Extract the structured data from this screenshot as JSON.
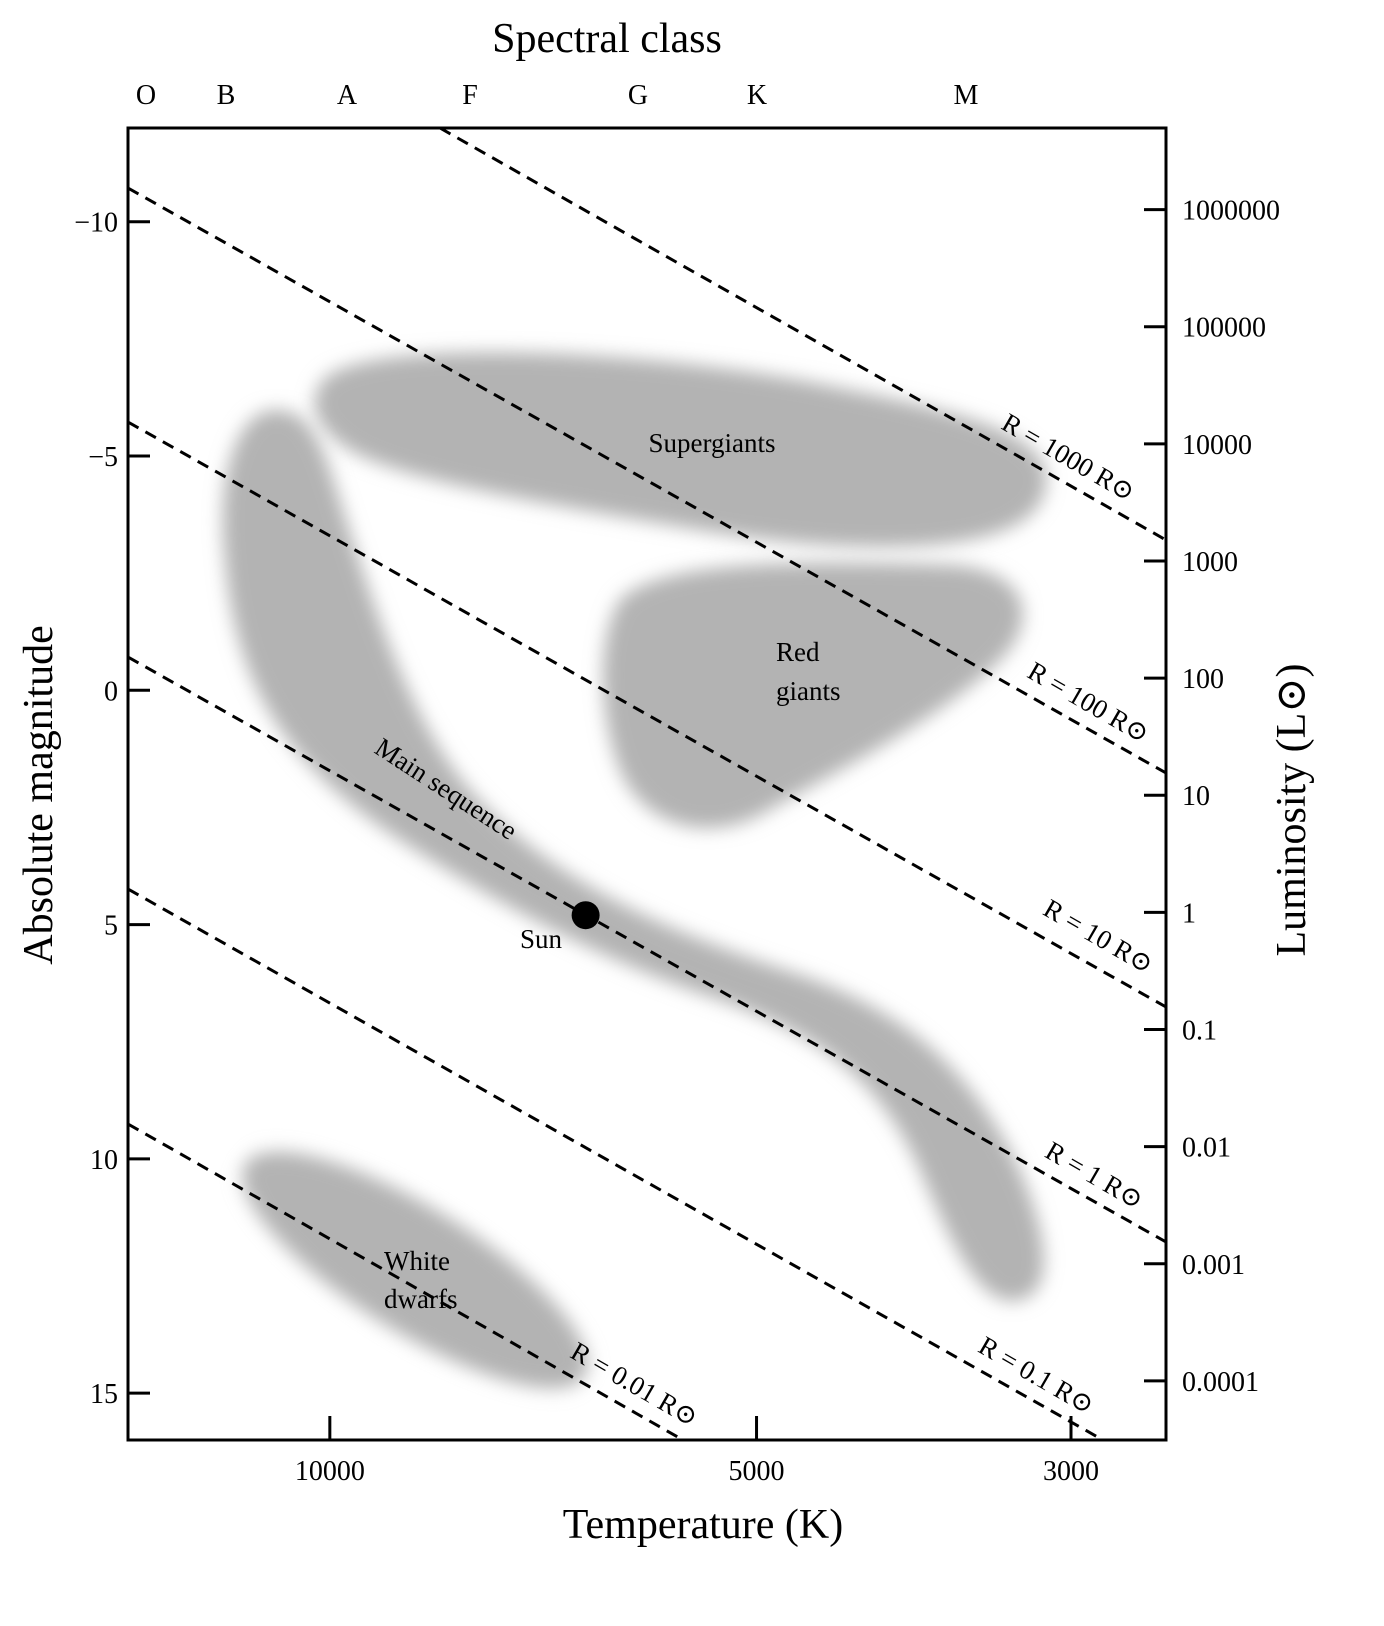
{
  "chart_data": {
    "type": "scatter",
    "title": "Spectral class",
    "spectral_classes": [
      "O",
      "B",
      "A",
      "F",
      "G",
      "K",
      "M"
    ],
    "xlabel": "Temperature (K)",
    "ylabel": "Absolute magnitude",
    "y2label": "Luminosity (L⊙)",
    "x_log": true,
    "y2_log": true,
    "xlim": [
      13880,
      2571
    ],
    "xticks": [
      10000,
      5000,
      3000
    ],
    "ylim": [
      16,
      -12
    ],
    "yticks": [
      {
        "value": -10,
        "label": "−10"
      },
      {
        "value": -5,
        "label": "−5"
      },
      0,
      5,
      10,
      15
    ],
    "y2lim": [
      3.13e-05,
      4970000
    ],
    "y2ticks": [
      1000000,
      100000,
      10000,
      1000,
      100,
      10,
      1,
      0.1,
      0.01,
      0.001,
      0.0001
    ],
    "series": [
      {
        "name": "Sun",
        "color": "#000000",
        "x": [
          6600
        ],
        "values": [
          4.8
        ]
      }
    ],
    "regions": {
      "supergiants": [
        "Supergiants"
      ],
      "red_giants": [
        "Red",
        "giants"
      ],
      "main_sequence": [
        "Main sequence"
      ],
      "white_dwarfs": [
        "White",
        "dwarfs"
      ]
    },
    "radius_lines": [
      "R = 1000 R⊙",
      "R = 100 R⊙",
      "R = 10 R⊙",
      "R = 1 R⊙",
      "R = 0.1 R⊙",
      "R = 0.01 R⊙"
    ]
  }
}
